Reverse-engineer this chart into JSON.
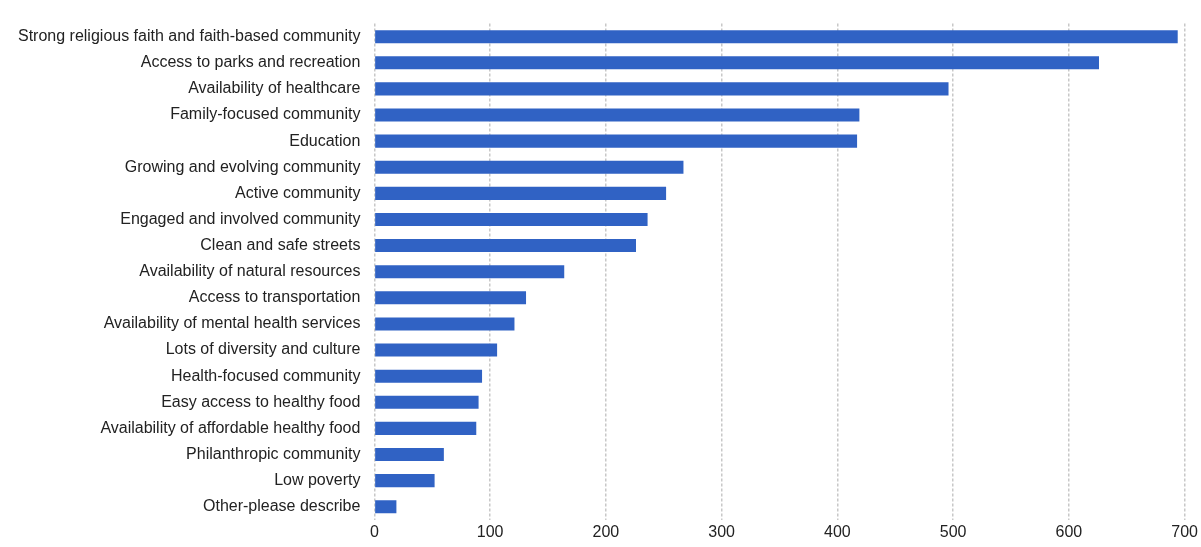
{
  "chart_data": {
    "type": "bar",
    "orientation": "horizontal",
    "categories": [
      "Strong religious faith and faith-based community",
      "Access to parks and recreation",
      "Availability of healthcare",
      "Family-focused community",
      "Education",
      "Growing and evolving community",
      "Active community",
      "Engaged and involved community",
      "Clean and safe streets",
      "Availability of natural resources",
      "Access to transportation",
      "Availability of mental health services",
      "Lots of diversity and culture",
      "Health-focused community",
      "Easy access to healthy food",
      "Availability of affordable healthy food",
      "Philanthropic community",
      "Low poverty",
      "Other-please describe"
    ],
    "values": [
      694,
      626,
      496,
      419,
      417,
      267,
      252,
      236,
      226,
      164,
      131,
      121,
      106,
      93,
      90,
      88,
      60,
      52,
      19
    ],
    "color": "#3062c4",
    "xlim": [
      0,
      700
    ],
    "xticks": [
      0,
      100,
      200,
      300,
      400,
      500,
      600,
      700
    ],
    "grid": "x",
    "legend": false
  }
}
